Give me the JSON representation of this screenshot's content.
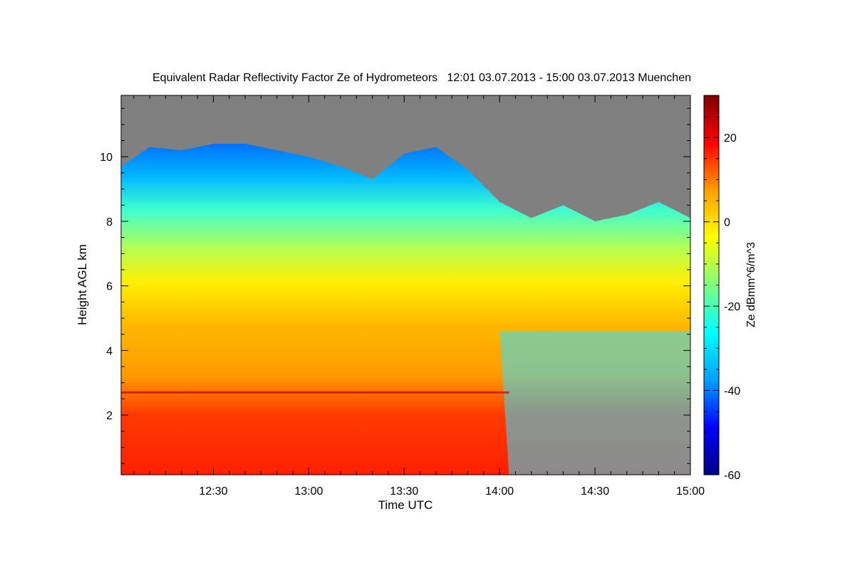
{
  "chart_data": {
    "type": "heatmap",
    "title": "Equivalent Radar Reflectivity Factor Ze of Hydrometeors   12:01 03.07.2013 - 15:00 03.07.2013 Muenchen",
    "xlabel": "Time UTC",
    "ylabel": "Height AGL km",
    "colorbar_label": "Ze dBmm^6/m^3",
    "x_ticks": [
      "12:30",
      "13:00",
      "13:30",
      "14:00",
      "14:30",
      "15:00"
    ],
    "y_ticks": [
      2,
      4,
      6,
      8,
      10
    ],
    "colorbar_ticks": [
      20,
      0,
      -20,
      -40,
      -60
    ],
    "xlim": [
      "12:01",
      "15:00"
    ],
    "ylim": [
      0.15,
      11.9
    ],
    "clim": [
      -60,
      30
    ],
    "colormap": [
      "#00007f",
      "#0000ff",
      "#00a0ff",
      "#00ffff",
      "#7fff7f",
      "#ffff00",
      "#ff9f00",
      "#ff0000",
      "#7f0000"
    ],
    "no_echo_color": "#808080",
    "echo_top_km": [
      [
        "12:01",
        9.7
      ],
      [
        "12:10",
        10.3
      ],
      [
        "12:20",
        10.2
      ],
      [
        "12:30",
        10.4
      ],
      [
        "12:40",
        10.4
      ],
      [
        "12:50",
        10.2
      ],
      [
        "13:00",
        10.0
      ],
      [
        "13:10",
        9.7
      ],
      [
        "13:20",
        9.3
      ],
      [
        "13:30",
        10.1
      ],
      [
        "13:40",
        10.3
      ],
      [
        "13:50",
        9.6
      ],
      [
        "14:00",
        8.6
      ],
      [
        "14:10",
        8.1
      ],
      [
        "14:20",
        8.5
      ],
      [
        "14:30",
        8.0
      ],
      [
        "14:40",
        8.2
      ],
      [
        "14:50",
        8.6
      ],
      [
        "15:00",
        8.1
      ]
    ],
    "melting_layer": {
      "height_km": 2.7,
      "start": "12:01",
      "end": "14:03"
    },
    "annotations": []
  }
}
